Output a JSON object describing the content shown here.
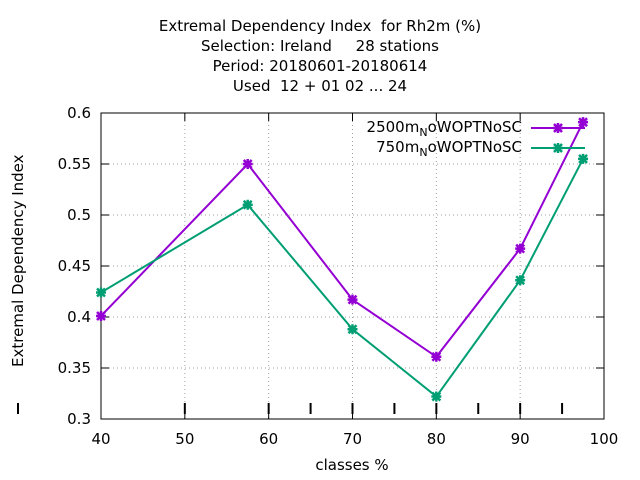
{
  "chart_data": {
    "type": "line",
    "title_lines": [
      "Extremal Dependency Index  for Rh2m (%)",
      "Selection: Ireland     28 stations",
      "Period: 20180601-20180614",
      "Used  12 + 01 02 ... 24"
    ],
    "xlabel": "classes %",
    "ylabel": "Extremal Dependency Index",
    "xlim": [
      40,
      100
    ],
    "ylim": [
      0.3,
      0.6
    ],
    "xticks": [
      "40",
      "50",
      "60",
      "70",
      "80",
      "90",
      "100"
    ],
    "yticks": [
      "0.3",
      "0.35",
      "0.4",
      "0.45",
      "0.5",
      "0.55",
      "0.6"
    ],
    "grid": true,
    "legend_position": "top-right",
    "series": [
      {
        "name_main": "2500m",
        "name_sub": "N",
        "name_rest": "oWOPTNoSC",
        "color": "#9400d3",
        "x": [
          40,
          57.5,
          70,
          80,
          90,
          97.5
        ],
        "y": [
          0.401,
          0.55,
          0.417,
          0.361,
          0.467,
          0.591
        ]
      },
      {
        "name_main": "750m",
        "name_sub": "N",
        "name_rest": "oWOPTNoSC",
        "color": "#009e73",
        "x": [
          40,
          57.5,
          70,
          80,
          90,
          97.5
        ],
        "y": [
          0.424,
          0.51,
          0.388,
          0.322,
          0.436,
          0.555
        ]
      }
    ],
    "extra_xticks": [
      65,
      75,
      85,
      95
    ]
  }
}
